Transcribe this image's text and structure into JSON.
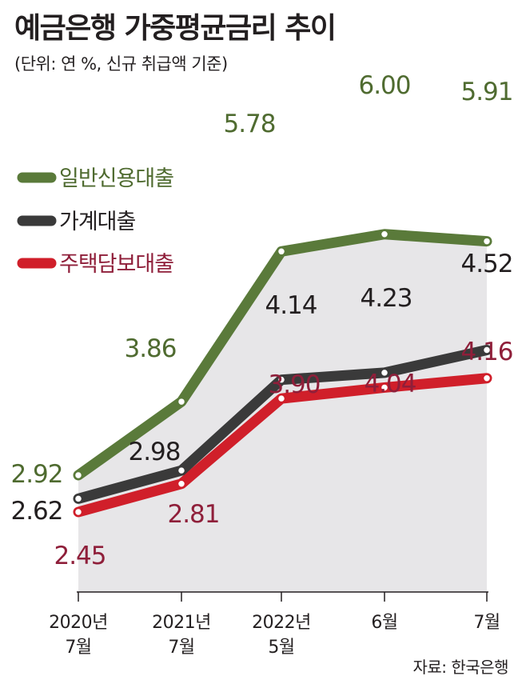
{
  "title": "예금은행 가중평균금리 추이",
  "subtitle": "(단위: 연 %, 신규 취급액 기준)",
  "source": "자료: 한국은행",
  "colors": {
    "credit": "#5a7a3a",
    "household": "#3a3a3a",
    "mortgage": "#d01f2a",
    "band": "#e7e6e8"
  },
  "chart_data": {
    "type": "line",
    "categories": [
      [
        "2020년",
        "7월"
      ],
      [
        "2021년",
        "7월"
      ],
      [
        "2022년",
        "5월"
      ],
      [
        "6월"
      ],
      [
        "7월"
      ]
    ],
    "series": [
      {
        "name": "일반신용대출",
        "key": "credit",
        "values": [
          2.92,
          3.86,
          5.78,
          6.0,
          5.91
        ],
        "labels": [
          "2.92",
          "3.86",
          "5.78",
          "6.00",
          "5.91"
        ],
        "label_color": "#4f6b30"
      },
      {
        "name": "가계대출",
        "key": "household",
        "values": [
          2.62,
          2.98,
          4.14,
          4.23,
          4.52
        ],
        "labels": [
          "2.62",
          "2.98",
          "4.14",
          "4.23",
          "4.52"
        ],
        "label_color": "#231f20"
      },
      {
        "name": "주택담보대출",
        "key": "mortgage",
        "values": [
          2.45,
          2.81,
          3.9,
          4.04,
          4.16
        ],
        "labels": [
          "2.45",
          "2.81",
          "3.90",
          "4.04",
          "4.16"
        ],
        "label_color": "#8f1f3a"
      }
    ],
    "legend_position": "top-left"
  }
}
